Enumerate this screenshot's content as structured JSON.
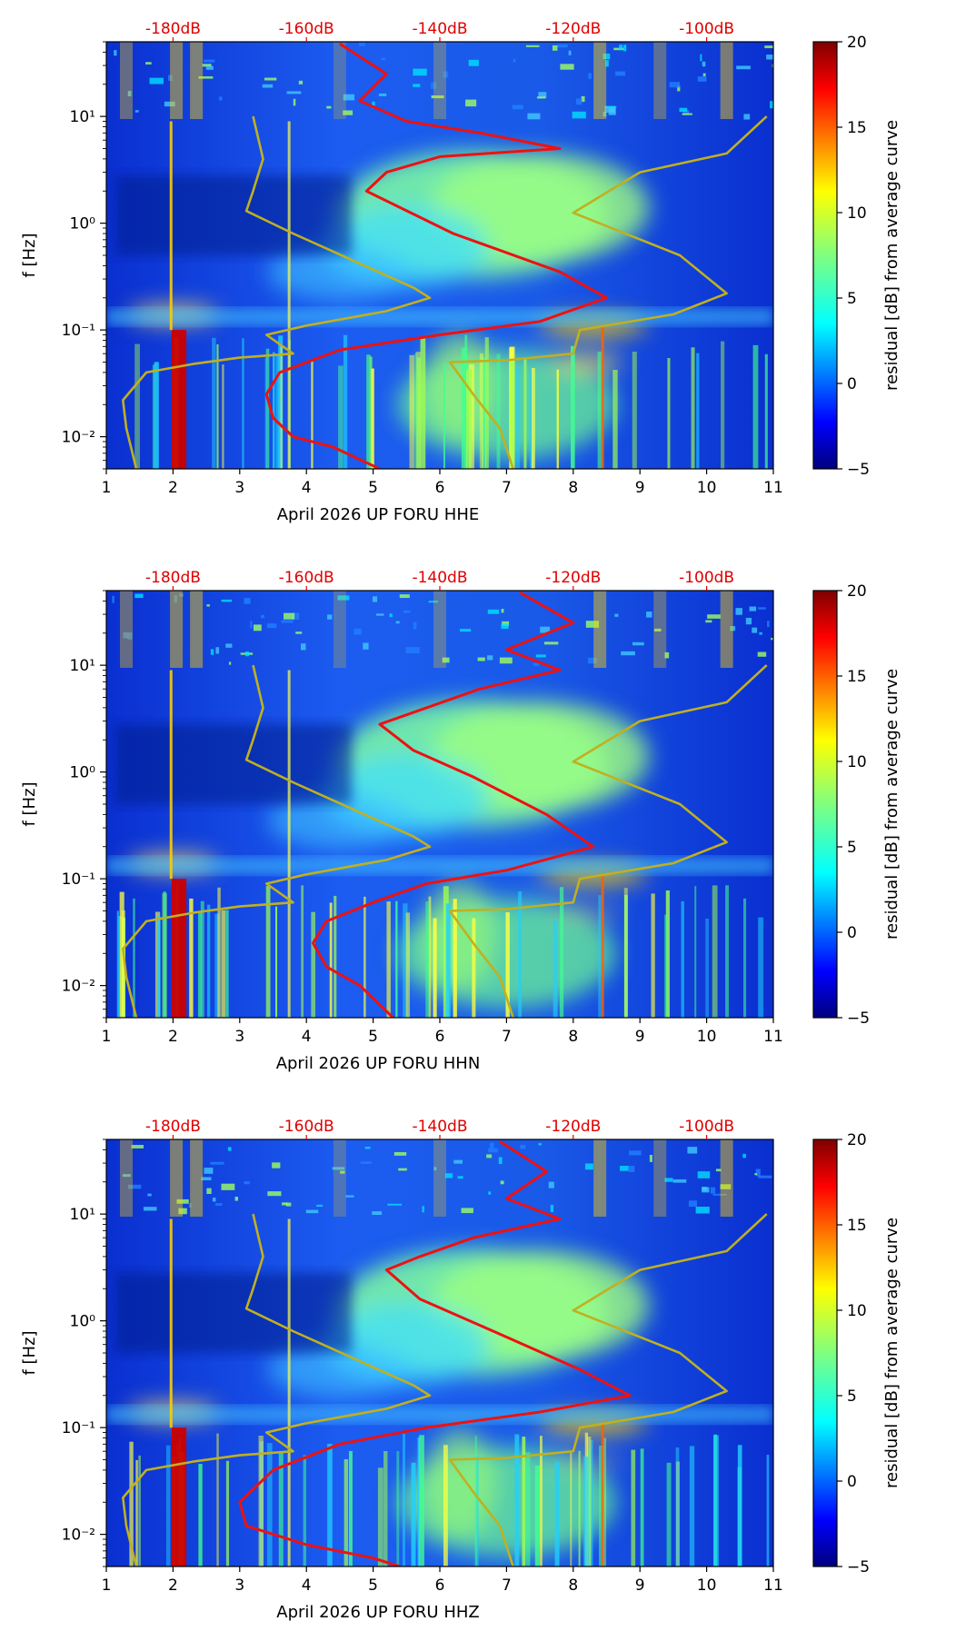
{
  "chart_data": [
    {
      "type": "heatmap",
      "xlabel": "April 2026 UP FORU  HHE",
      "ylabel": "f [Hz]",
      "colorbar_label": "residual [dB] from average curve",
      "xlim": [
        1,
        11
      ],
      "ylim": [
        0.005,
        50
      ],
      "yscale": "log",
      "x_ticks": [
        "1",
        "2",
        "3",
        "4",
        "5",
        "6",
        "7",
        "8",
        "9",
        "10",
        "11"
      ],
      "y_ticks": [
        "10⁻²",
        "10⁻¹",
        "10⁰",
        "10¹"
      ],
      "top_axis_labels": [
        "-180dB",
        "-160dB",
        "-140dB",
        "-120dB",
        "-100dB"
      ],
      "colorbar_range": [
        -5,
        20
      ],
      "colorbar_ticks": [
        "−5",
        "0",
        "5",
        "10",
        "15",
        "20"
      ],
      "series": [
        {
          "color": "#ee1111",
          "points": [
            [
              4.5,
              48
            ],
            [
              5.2,
              25
            ],
            [
              4.8,
              14
            ],
            [
              5.5,
              9
            ],
            [
              6.6,
              7
            ],
            [
              7.8,
              5
            ],
            [
              6.0,
              4.2
            ],
            [
              5.2,
              3
            ],
            [
              4.9,
              2.0
            ],
            [
              6.2,
              0.8
            ],
            [
              7.8,
              0.35
            ],
            [
              8.5,
              0.2
            ],
            [
              7.5,
              0.12
            ],
            [
              6.0,
              0.09
            ],
            [
              4.5,
              0.065
            ],
            [
              3.6,
              0.04
            ],
            [
              3.4,
              0.025
            ],
            [
              3.5,
              0.015
            ],
            [
              3.8,
              0.01
            ],
            [
              4.4,
              0.008
            ],
            [
              5.1,
              0.005
            ]
          ]
        },
        {
          "color": "#c0b020",
          "points": [
            [
              3.2,
              10
            ],
            [
              3.35,
              4
            ],
            [
              3.2,
              2
            ],
            [
              3.1,
              1.3
            ],
            [
              3.8,
              0.8
            ],
            [
              5.6,
              0.25
            ],
            [
              5.85,
              0.2
            ],
            [
              5.2,
              0.15
            ],
            [
              4.0,
              0.11
            ],
            [
              3.4,
              0.09
            ],
            [
              3.8,
              0.06
            ],
            [
              3.0,
              0.055
            ],
            [
              2.3,
              0.048
            ],
            [
              1.6,
              0.04
            ],
            [
              1.25,
              0.022
            ],
            [
              1.3,
              0.012
            ],
            [
              1.45,
              0.005
            ]
          ]
        },
        {
          "color": "#c0b020",
          "points": [
            [
              10.9,
              10
            ],
            [
              10.3,
              4.5
            ],
            [
              9,
              3
            ],
            [
              8,
              1.25
            ],
            [
              9.6,
              0.5
            ],
            [
              10.3,
              0.22
            ],
            [
              9.5,
              0.14
            ],
            [
              8.1,
              0.1
            ],
            [
              8,
              0.06
            ],
            [
              7,
              0.052
            ],
            [
              6.15,
              0.05
            ],
            [
              6.5,
              0.025
            ],
            [
              6.9,
              0.012
            ],
            [
              7.1,
              0.005
            ]
          ]
        }
      ]
    },
    {
      "type": "heatmap",
      "xlabel": "April 2026 UP FORU  HHN",
      "ylabel": "f [Hz]",
      "colorbar_label": "residual [dB] from average curve",
      "xlim": [
        1,
        11
      ],
      "ylim": [
        0.005,
        50
      ],
      "yscale": "log",
      "x_ticks": [
        "1",
        "2",
        "3",
        "4",
        "5",
        "6",
        "7",
        "8",
        "9",
        "10",
        "11"
      ],
      "y_ticks": [
        "10⁻²",
        "10⁻¹",
        "10⁰",
        "10¹"
      ],
      "top_axis_labels": [
        "-180dB",
        "-160dB",
        "-140dB",
        "-120dB",
        "-100dB"
      ],
      "colorbar_range": [
        -5,
        20
      ],
      "colorbar_ticks": [
        "−5",
        "0",
        "5",
        "10",
        "15",
        "20"
      ],
      "series": [
        {
          "color": "#ee1111",
          "points": [
            [
              7.2,
              48
            ],
            [
              8.0,
              25
            ],
            [
              7.0,
              14
            ],
            [
              7.8,
              9
            ],
            [
              6.6,
              6
            ],
            [
              5.8,
              4
            ],
            [
              5.1,
              2.8
            ],
            [
              5.6,
              1.6
            ],
            [
              6.5,
              0.9
            ],
            [
              7.6,
              0.4
            ],
            [
              8.3,
              0.2
            ],
            [
              7.0,
              0.12
            ],
            [
              5.8,
              0.09
            ],
            [
              5.0,
              0.06
            ],
            [
              4.3,
              0.04
            ],
            [
              4.1,
              0.025
            ],
            [
              4.3,
              0.015
            ],
            [
              4.8,
              0.01
            ],
            [
              5.3,
              0.005
            ]
          ]
        },
        {
          "color": "#c0b020",
          "points": [
            [
              3.2,
              10
            ],
            [
              3.35,
              4
            ],
            [
              3.2,
              2
            ],
            [
              3.1,
              1.3
            ],
            [
              3.8,
              0.8
            ],
            [
              5.6,
              0.25
            ],
            [
              5.85,
              0.2
            ],
            [
              5.2,
              0.15
            ],
            [
              4.0,
              0.11
            ],
            [
              3.4,
              0.09
            ],
            [
              3.8,
              0.06
            ],
            [
              3.0,
              0.055
            ],
            [
              2.3,
              0.048
            ],
            [
              1.6,
              0.04
            ],
            [
              1.25,
              0.022
            ],
            [
              1.3,
              0.012
            ],
            [
              1.45,
              0.005
            ]
          ]
        },
        {
          "color": "#c0b020",
          "points": [
            [
              10.9,
              10
            ],
            [
              10.3,
              4.5
            ],
            [
              9,
              3
            ],
            [
              8,
              1.25
            ],
            [
              9.6,
              0.5
            ],
            [
              10.3,
              0.22
            ],
            [
              9.5,
              0.14
            ],
            [
              8.1,
              0.1
            ],
            [
              8,
              0.06
            ],
            [
              7,
              0.052
            ],
            [
              6.15,
              0.05
            ],
            [
              6.5,
              0.025
            ],
            [
              6.9,
              0.012
            ],
            [
              7.1,
              0.005
            ]
          ]
        }
      ]
    },
    {
      "type": "heatmap",
      "xlabel": "April 2026 UP FORU  HHZ",
      "ylabel": "f [Hz]",
      "colorbar_label": "residual [dB] from average curve",
      "xlim": [
        1,
        11
      ],
      "ylim": [
        0.005,
        50
      ],
      "yscale": "log",
      "x_ticks": [
        "1",
        "2",
        "3",
        "4",
        "5",
        "6",
        "7",
        "8",
        "9",
        "10",
        "11"
      ],
      "y_ticks": [
        "10⁻²",
        "10⁻¹",
        "10⁰",
        "10¹"
      ],
      "top_axis_labels": [
        "-180dB",
        "-160dB",
        "-140dB",
        "-120dB",
        "-100dB"
      ],
      "colorbar_range": [
        -5,
        20
      ],
      "colorbar_ticks": [
        "−5",
        "0",
        "5",
        "10",
        "15",
        "20"
      ],
      "series": [
        {
          "color": "#ee1111",
          "points": [
            [
              6.9,
              48
            ],
            [
              7.6,
              25
            ],
            [
              7.0,
              14
            ],
            [
              7.8,
              9
            ],
            [
              6.5,
              6
            ],
            [
              5.7,
              4
            ],
            [
              5.2,
              3
            ],
            [
              5.7,
              1.6
            ],
            [
              6.8,
              0.8
            ],
            [
              8.1,
              0.35
            ],
            [
              8.85,
              0.2
            ],
            [
              7.5,
              0.14
            ],
            [
              5.8,
              0.1
            ],
            [
              4.5,
              0.07
            ],
            [
              3.5,
              0.04
            ],
            [
              3.0,
              0.02
            ],
            [
              3.1,
              0.012
            ],
            [
              4.0,
              0.008
            ],
            [
              5.0,
              0.006
            ],
            [
              5.4,
              0.005
            ]
          ]
        },
        {
          "color": "#c0b020",
          "points": [
            [
              3.2,
              10
            ],
            [
              3.35,
              4
            ],
            [
              3.2,
              2
            ],
            [
              3.1,
              1.3
            ],
            [
              3.8,
              0.8
            ],
            [
              5.6,
              0.25
            ],
            [
              5.85,
              0.2
            ],
            [
              5.2,
              0.15
            ],
            [
              4.0,
              0.11
            ],
            [
              3.4,
              0.09
            ],
            [
              3.8,
              0.06
            ],
            [
              3.0,
              0.055
            ],
            [
              2.3,
              0.048
            ],
            [
              1.6,
              0.04
            ],
            [
              1.25,
              0.022
            ],
            [
              1.3,
              0.012
            ],
            [
              1.45,
              0.005
            ]
          ]
        },
        {
          "color": "#c0b020",
          "points": [
            [
              10.9,
              10
            ],
            [
              10.3,
              4.5
            ],
            [
              9,
              3
            ],
            [
              8,
              1.25
            ],
            [
              9.6,
              0.5
            ],
            [
              10.3,
              0.22
            ],
            [
              9.5,
              0.14
            ],
            [
              8.1,
              0.1
            ],
            [
              8,
              0.06
            ],
            [
              7,
              0.052
            ],
            [
              6.15,
              0.05
            ],
            [
              6.5,
              0.025
            ],
            [
              6.9,
              0.012
            ],
            [
              7.1,
              0.005
            ]
          ]
        }
      ]
    }
  ]
}
